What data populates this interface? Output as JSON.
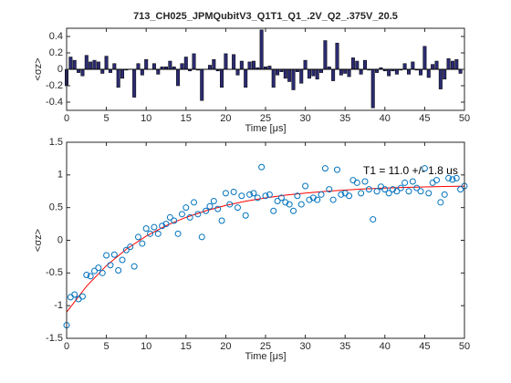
{
  "chart_data": [
    {
      "type": "bar",
      "title": "713_CH025_JPMQubitV3_Q1T1_Q1_.2V_Q2_.375V_20.5",
      "xlabel": "Time [μs]",
      "ylabel": "<σz>",
      "color": "#2b2b72",
      "x": [
        0,
        0.5,
        1,
        1.5,
        2,
        2.5,
        3,
        3.5,
        4,
        4.5,
        5,
        5.5,
        6,
        6.5,
        7,
        7.5,
        8,
        8.5,
        9,
        9.5,
        10,
        10.5,
        11,
        11.5,
        12,
        12.5,
        13,
        13.5,
        14,
        14.5,
        15,
        15.5,
        16,
        16.5,
        17,
        17.5,
        18,
        18.5,
        19,
        19.5,
        20,
        20.5,
        21,
        21.5,
        22,
        22.5,
        23,
        23.5,
        24,
        24.5,
        25,
        25.5,
        26,
        26.5,
        27,
        27.5,
        28,
        28.5,
        29,
        29.5,
        30,
        30.5,
        31,
        31.5,
        32,
        32.5,
        33,
        33.5,
        34,
        34.5,
        35,
        35.5,
        36,
        36.5,
        37,
        37.5,
        38,
        38.5,
        39,
        39.5,
        40,
        40.5,
        41,
        41.5,
        42,
        42.5,
        43,
        43.5,
        44,
        44.5,
        45,
        45.5,
        46,
        46.5,
        47,
        47.5,
        48,
        48.5,
        49,
        49.5,
        50
      ],
      "values": [
        -0.2,
        0.15,
        0.11,
        -0.04,
        -0.08,
        0.17,
        0.09,
        0.11,
        0.09,
        -0.05,
        0.16,
        -0.04,
        0.07,
        -0.22,
        -0.11,
        -0.01,
        0.0,
        -0.34,
        0.07,
        -0.07,
        0.12,
        0.0,
        0.07,
        -0.06,
        0.03,
        0.03,
        0.1,
        0.03,
        -0.2,
        0.07,
        0.15,
        -0.02,
        0.19,
        -0.01,
        -0.38,
        0.0,
        0.05,
        0.12,
        -0.02,
        -0.22,
        0.19,
        0.0,
        0.18,
        -0.07,
        0.1,
        -0.22,
        0.09,
        0.1,
        0.02,
        0.48,
        0.03,
        0.04,
        -0.22,
        -0.07,
        -0.03,
        -0.11,
        -0.15,
        -0.25,
        -0.03,
        -0.17,
        0.11,
        -0.11,
        -0.08,
        -0.12,
        -0.04,
        0.35,
        0.03,
        -0.14,
        0.32,
        -0.07,
        -0.05,
        -0.09,
        0.14,
        0.1,
        -0.06,
        0.11,
        -0.01,
        -0.47,
        -0.04,
        0.02,
        -0.02,
        -0.08,
        -0.02,
        -0.06,
        -0.01,
        0.07,
        -0.06,
        0.09,
        -0.01,
        -0.07,
        0.28,
        -0.1,
        0.06,
        0.1,
        -0.24,
        -0.12,
        0.13,
        0.1,
        0.12,
        -0.05,
        0.0
      ],
      "xlim": [
        0,
        50
      ],
      "ylim": [
        -0.5,
        0.5
      ],
      "xticks": [
        0,
        5,
        10,
        15,
        20,
        25,
        30,
        35,
        40,
        45,
        50
      ],
      "yticks": [
        -0.4,
        -0.2,
        0,
        0.2,
        0.4
      ]
    },
    {
      "type": "scatter",
      "xlabel": "Time [μs]",
      "ylabel": "<σz>",
      "annotation": "T1 = 11.0 +/- 1.8 us",
      "points": {
        "color": "#0072bd",
        "x": [
          0,
          0.5,
          1,
          1.5,
          2,
          2.5,
          3,
          3.5,
          4,
          4.5,
          5,
          5.5,
          6,
          6.5,
          7,
          7.5,
          8,
          8.5,
          9,
          9.5,
          10,
          10.5,
          11,
          11.5,
          12,
          12.5,
          13,
          13.5,
          14,
          14.5,
          15,
          15.5,
          16,
          16.5,
          17,
          17.5,
          18,
          18.5,
          19,
          19.5,
          20,
          20.5,
          21,
          21.5,
          22,
          22.5,
          23,
          23.5,
          24,
          24.5,
          25,
          25.5,
          26,
          26.5,
          27,
          27.5,
          28,
          28.5,
          29,
          29.5,
          30,
          30.5,
          31,
          31.5,
          32,
          32.5,
          33,
          33.5,
          34,
          34.5,
          35,
          35.5,
          36,
          36.5,
          37,
          37.5,
          38,
          38.5,
          39,
          39.5,
          40,
          40.5,
          41,
          41.5,
          42,
          42.5,
          43,
          43.5,
          44,
          44.5,
          45,
          45.5,
          46,
          46.5,
          47,
          47.5,
          48,
          48.5,
          49,
          49.5,
          50
        ],
        "values": [
          -1.3,
          -0.87,
          -0.83,
          -0.9,
          -0.86,
          -0.53,
          -0.55,
          -0.47,
          -0.42,
          -0.5,
          -0.23,
          -0.38,
          -0.22,
          -0.46,
          -0.3,
          -0.15,
          -0.1,
          -0.4,
          0.05,
          -0.05,
          0.18,
          0.1,
          0.2,
          0.1,
          0.22,
          0.25,
          0.35,
          0.3,
          0.1,
          0.4,
          0.5,
          0.35,
          0.58,
          0.4,
          0.05,
          0.45,
          0.52,
          0.6,
          0.48,
          0.3,
          0.72,
          0.55,
          0.74,
          0.5,
          0.68,
          0.38,
          0.7,
          0.72,
          0.65,
          1.12,
          0.68,
          0.7,
          0.45,
          0.6,
          0.65,
          0.58,
          0.55,
          0.45,
          0.68,
          0.55,
          0.83,
          0.62,
          0.65,
          0.62,
          0.7,
          1.1,
          0.78,
          0.62,
          1.08,
          0.7,
          0.72,
          0.68,
          0.92,
          0.88,
          0.72,
          0.9,
          0.78,
          0.32,
          0.75,
          0.82,
          0.78,
          0.72,
          0.78,
          0.75,
          0.8,
          0.88,
          0.75,
          0.9,
          0.8,
          0.75,
          1.1,
          0.72,
          0.88,
          0.92,
          0.58,
          0.7,
          0.95,
          0.93,
          0.95,
          0.78,
          0.83
        ]
      },
      "fit": {
        "color": "#ff0000",
        "x": [
          0,
          2.5,
          5,
          7.5,
          10,
          12.5,
          15,
          17.5,
          20,
          22.5,
          25,
          27.5,
          30,
          32.5,
          35,
          37.5,
          40,
          42.5,
          45,
          47.5,
          50
        ],
        "values": [
          -1.1,
          -0.704,
          -0.388,
          -0.136,
          0.064,
          0.224,
          0.351,
          0.452,
          0.534,
          0.598,
          0.649,
          0.69,
          0.722,
          0.748,
          0.769,
          0.786,
          0.799,
          0.809,
          0.817,
          0.824,
          0.829
        ]
      },
      "xlim": [
        0,
        50
      ],
      "ylim": [
        -1.5,
        1.5
      ],
      "xticks": [
        0,
        5,
        10,
        15,
        20,
        25,
        30,
        35,
        40,
        45,
        50
      ],
      "yticks": [
        -1.5,
        -1,
        -0.5,
        0,
        0.5,
        1,
        1.5
      ]
    }
  ]
}
